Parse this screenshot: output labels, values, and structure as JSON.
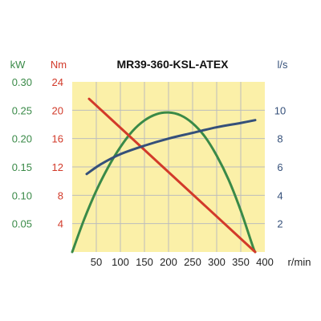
{
  "colors": {
    "kw": "#3a8a48",
    "nm": "#d23a2a",
    "ls": "#35507a",
    "plot_bg": "#fbf0a8",
    "axis_text": "#222222"
  },
  "chart_data": {
    "type": "line",
    "title": "MR39-360-KSL-ATEX",
    "xlabel": "r/min",
    "xlim": [
      0,
      400
    ],
    "x_ticks": [
      50,
      100,
      150,
      200,
      250,
      300,
      350,
      400
    ],
    "grid": true,
    "axes": {
      "kw": {
        "label": "kW",
        "side": "left-outer",
        "lim": [
          0,
          0.3
        ],
        "ticks": [
          0.05,
          0.1,
          0.15,
          0.2,
          0.25,
          0.3
        ],
        "tick_labels": [
          "0.05",
          "0.10",
          "0.15",
          "0.20",
          "0.25",
          "0.30"
        ]
      },
      "nm": {
        "label": "Nm",
        "side": "left-inner",
        "lim": [
          0,
          24
        ],
        "ticks": [
          4,
          8,
          12,
          16,
          20,
          24
        ],
        "tick_labels": [
          "4",
          "8",
          "12",
          "16",
          "20",
          "24"
        ]
      },
      "ls": {
        "label": "l/s",
        "side": "right",
        "lim": [
          0,
          12
        ],
        "ticks": [
          2,
          4,
          6,
          8,
          10
        ],
        "tick_labels": [
          "2",
          "4",
          "6",
          "8",
          "10"
        ]
      }
    },
    "series": [
      {
        "axis": "kw",
        "color": "#3a8a48",
        "x": [
          0,
          25,
          50,
          75,
          100,
          125,
          150,
          175,
          200,
          225,
          250,
          275,
          300,
          325,
          350,
          375,
          380
        ],
        "y": [
          0.0,
          0.058,
          0.108,
          0.15,
          0.185,
          0.213,
          0.232,
          0.243,
          0.246,
          0.241,
          0.227,
          0.204,
          0.17,
          0.127,
          0.073,
          0.01,
          0.0
        ]
      },
      {
        "axis": "nm",
        "color": "#d23a2a",
        "x": [
          35,
          380
        ],
        "y": [
          21.6,
          0.0
        ]
      },
      {
        "axis": "ls",
        "color": "#35507a",
        "x": [
          30,
          60,
          100,
          150,
          200,
          250,
          300,
          350,
          380
        ],
        "y": [
          5.5,
          6.2,
          6.9,
          7.5,
          8.0,
          8.4,
          8.8,
          9.1,
          9.3
        ]
      }
    ]
  }
}
